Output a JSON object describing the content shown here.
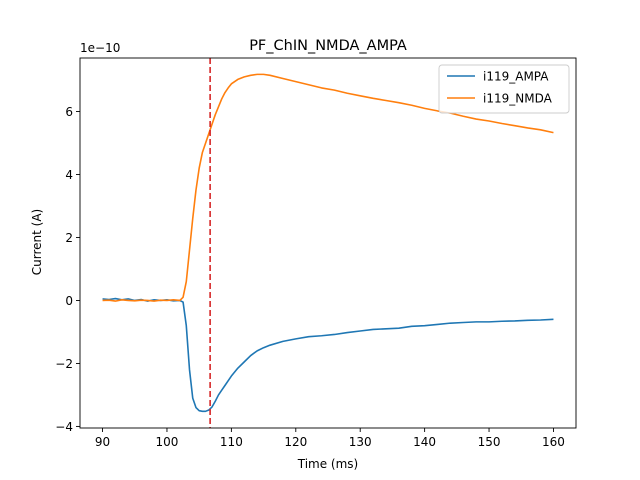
{
  "chart_data": {
    "type": "line",
    "title": "PF_ChIN_NMDA_AMPA",
    "xlabel": "Time (ms)",
    "ylabel": "Current (A)",
    "y_offset_label": "1e−10",
    "y_multiplier": 1e-10,
    "xlim": [
      86.5,
      163.5
    ],
    "ylim": [
      -4.05,
      7.7
    ],
    "xticks": [
      90,
      100,
      110,
      120,
      130,
      140,
      150,
      160
    ],
    "yticks": [
      -4,
      -2,
      0,
      2,
      4,
      6
    ],
    "ytick_labels": [
      "−4",
      "−2",
      "0",
      "2",
      "4",
      "6"
    ],
    "grid": false,
    "legend_position": "top-right",
    "vline": {
      "x": 106.7,
      "color": "#d62728",
      "style": "dashed"
    },
    "series": [
      {
        "name": "i119_AMPA",
        "color": "#1f77b4",
        "x": [
          90,
          91,
          92,
          93,
          94,
          95,
          96,
          97,
          98,
          99,
          100,
          101,
          102,
          102.5,
          103,
          103.5,
          104,
          104.5,
          105,
          105.5,
          106,
          106.5,
          107,
          107.5,
          108,
          108.5,
          109,
          110,
          111,
          112,
          113,
          114,
          115,
          116,
          118,
          120,
          122,
          124,
          126,
          128,
          130,
          132,
          134,
          136,
          138,
          140,
          142,
          144,
          146,
          148,
          150,
          152,
          154,
          156,
          158,
          160
        ],
        "y": [
          0.05,
          0.03,
          0.06,
          0.02,
          0.05,
          0.0,
          0.03,
          -0.02,
          0.02,
          0.0,
          0.02,
          -0.01,
          0.0,
          -0.05,
          -0.8,
          -2.2,
          -3.1,
          -3.4,
          -3.5,
          -3.52,
          -3.52,
          -3.48,
          -3.38,
          -3.2,
          -3.0,
          -2.85,
          -2.7,
          -2.4,
          -2.15,
          -1.95,
          -1.75,
          -1.6,
          -1.5,
          -1.42,
          -1.3,
          -1.22,
          -1.15,
          -1.12,
          -1.08,
          -1.02,
          -0.97,
          -0.92,
          -0.9,
          -0.88,
          -0.82,
          -0.8,
          -0.76,
          -0.72,
          -0.7,
          -0.68,
          -0.68,
          -0.66,
          -0.65,
          -0.63,
          -0.62,
          -0.6
        ]
      },
      {
        "name": "i119_NMDA",
        "color": "#ff7f0e",
        "x": [
          90,
          91,
          92,
          93,
          94,
          95,
          96,
          97,
          98,
          99,
          100,
          101,
          102,
          102.5,
          103,
          103.5,
          104,
          104.5,
          105,
          105.5,
          106,
          106.5,
          107,
          107.5,
          108,
          108.5,
          109,
          109.5,
          110,
          111,
          112,
          113,
          114,
          115,
          116,
          118,
          120,
          122,
          124,
          126,
          128,
          130,
          132,
          134,
          136,
          138,
          140,
          142,
          144,
          146,
          148,
          150,
          152,
          154,
          156,
          158,
          160
        ],
        "y": [
          0.0,
          0.01,
          -0.02,
          0.02,
          0.0,
          -0.01,
          0.01,
          0.0,
          -0.02,
          0.01,
          0.0,
          0.02,
          0.0,
          0.1,
          0.6,
          1.6,
          2.6,
          3.5,
          4.2,
          4.7,
          5.0,
          5.3,
          5.6,
          5.9,
          6.15,
          6.4,
          6.6,
          6.75,
          6.88,
          7.02,
          7.1,
          7.15,
          7.18,
          7.18,
          7.15,
          7.05,
          6.95,
          6.85,
          6.75,
          6.68,
          6.58,
          6.5,
          6.42,
          6.35,
          6.28,
          6.2,
          6.1,
          6.02,
          5.95,
          5.85,
          5.76,
          5.7,
          5.62,
          5.55,
          5.48,
          5.42,
          5.33
        ]
      }
    ]
  }
}
